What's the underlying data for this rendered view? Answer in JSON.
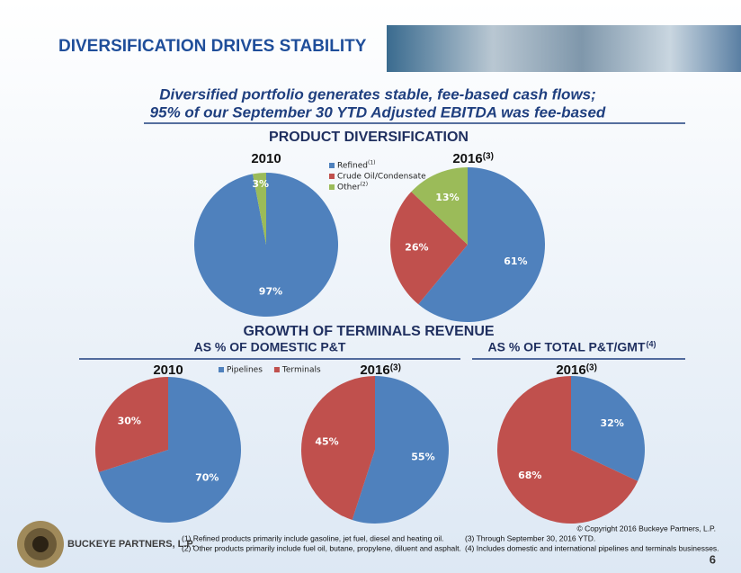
{
  "page": {
    "title": "DIVERSIFICATION DRIVES STABILITY",
    "subtitle": [
      "Diversified portfolio generates stable, fee-based cash flows;",
      "95% of our September 30 YTD Adjusted EBITDA was fee-based"
    ],
    "section_top": "PRODUCT DIVERSIFICATION",
    "section_bottom": "GROWTH OF TERMINALS REVENUE",
    "section_left": "AS % OF DOMESTIC P&T",
    "section_right": "AS % OF TOTAL P&T/GMT",
    "section_right_note": "(4)",
    "company": "BUCKEYE PARTNERS, L.P.",
    "copyright": "© Copyright 2016 Buckeye Partners, L.P.",
    "page_number": "6",
    "footnotes": [
      "(1)  Refined products primarily include gasoline, jet fuel, diesel and heating oil.",
      "(2)  Other products primarily include fuel oil, butane, propylene, diluent and asphalt.",
      "(3) Through September 30, 2016 YTD.",
      "(4) Includes domestic and international pipelines and terminals businesses."
    ]
  },
  "chart_data": [
    {
      "type": "pie",
      "title": "2010",
      "categories": [
        "Refined",
        "Crude Oil/Condensate",
        "Other"
      ],
      "category_notes": [
        "(1)",
        null,
        "(2)"
      ],
      "values": [
        97,
        0,
        3
      ],
      "value_labels": [
        "97%",
        null,
        "3%"
      ],
      "colors": [
        "#4f81bd",
        "#c0504d",
        "#9bbb59"
      ],
      "legend": true
    },
    {
      "type": "pie",
      "title": "2016",
      "title_note": "(3)",
      "categories": [
        "Refined",
        "Crude Oil/Condensate",
        "Other"
      ],
      "values": [
        61,
        26,
        13
      ],
      "value_labels": [
        "61%",
        "26%",
        "13%"
      ],
      "colors": [
        "#4f81bd",
        "#c0504d",
        "#9bbb59"
      ],
      "legend": false
    },
    {
      "type": "pie",
      "title": "2010",
      "categories": [
        "Pipelines",
        "Terminals"
      ],
      "values": [
        70,
        30
      ],
      "value_labels": [
        "70%",
        "30%"
      ],
      "colors": [
        "#4f81bd",
        "#c0504d"
      ],
      "legend": true
    },
    {
      "type": "pie",
      "title": "2016",
      "title_note": "(3)",
      "categories": [
        "Pipelines",
        "Terminals"
      ],
      "values": [
        55,
        45
      ],
      "value_labels": [
        "55%",
        "45%"
      ],
      "colors": [
        "#4f81bd",
        "#c0504d"
      ],
      "legend": false
    },
    {
      "type": "pie",
      "title": "2016",
      "title_note": "(3)",
      "categories": [
        "Pipelines",
        "Terminals"
      ],
      "values": [
        32,
        68
      ],
      "value_labels": [
        "32%",
        "68%"
      ],
      "colors": [
        "#4f81bd",
        "#c0504d"
      ],
      "legend": false
    }
  ]
}
